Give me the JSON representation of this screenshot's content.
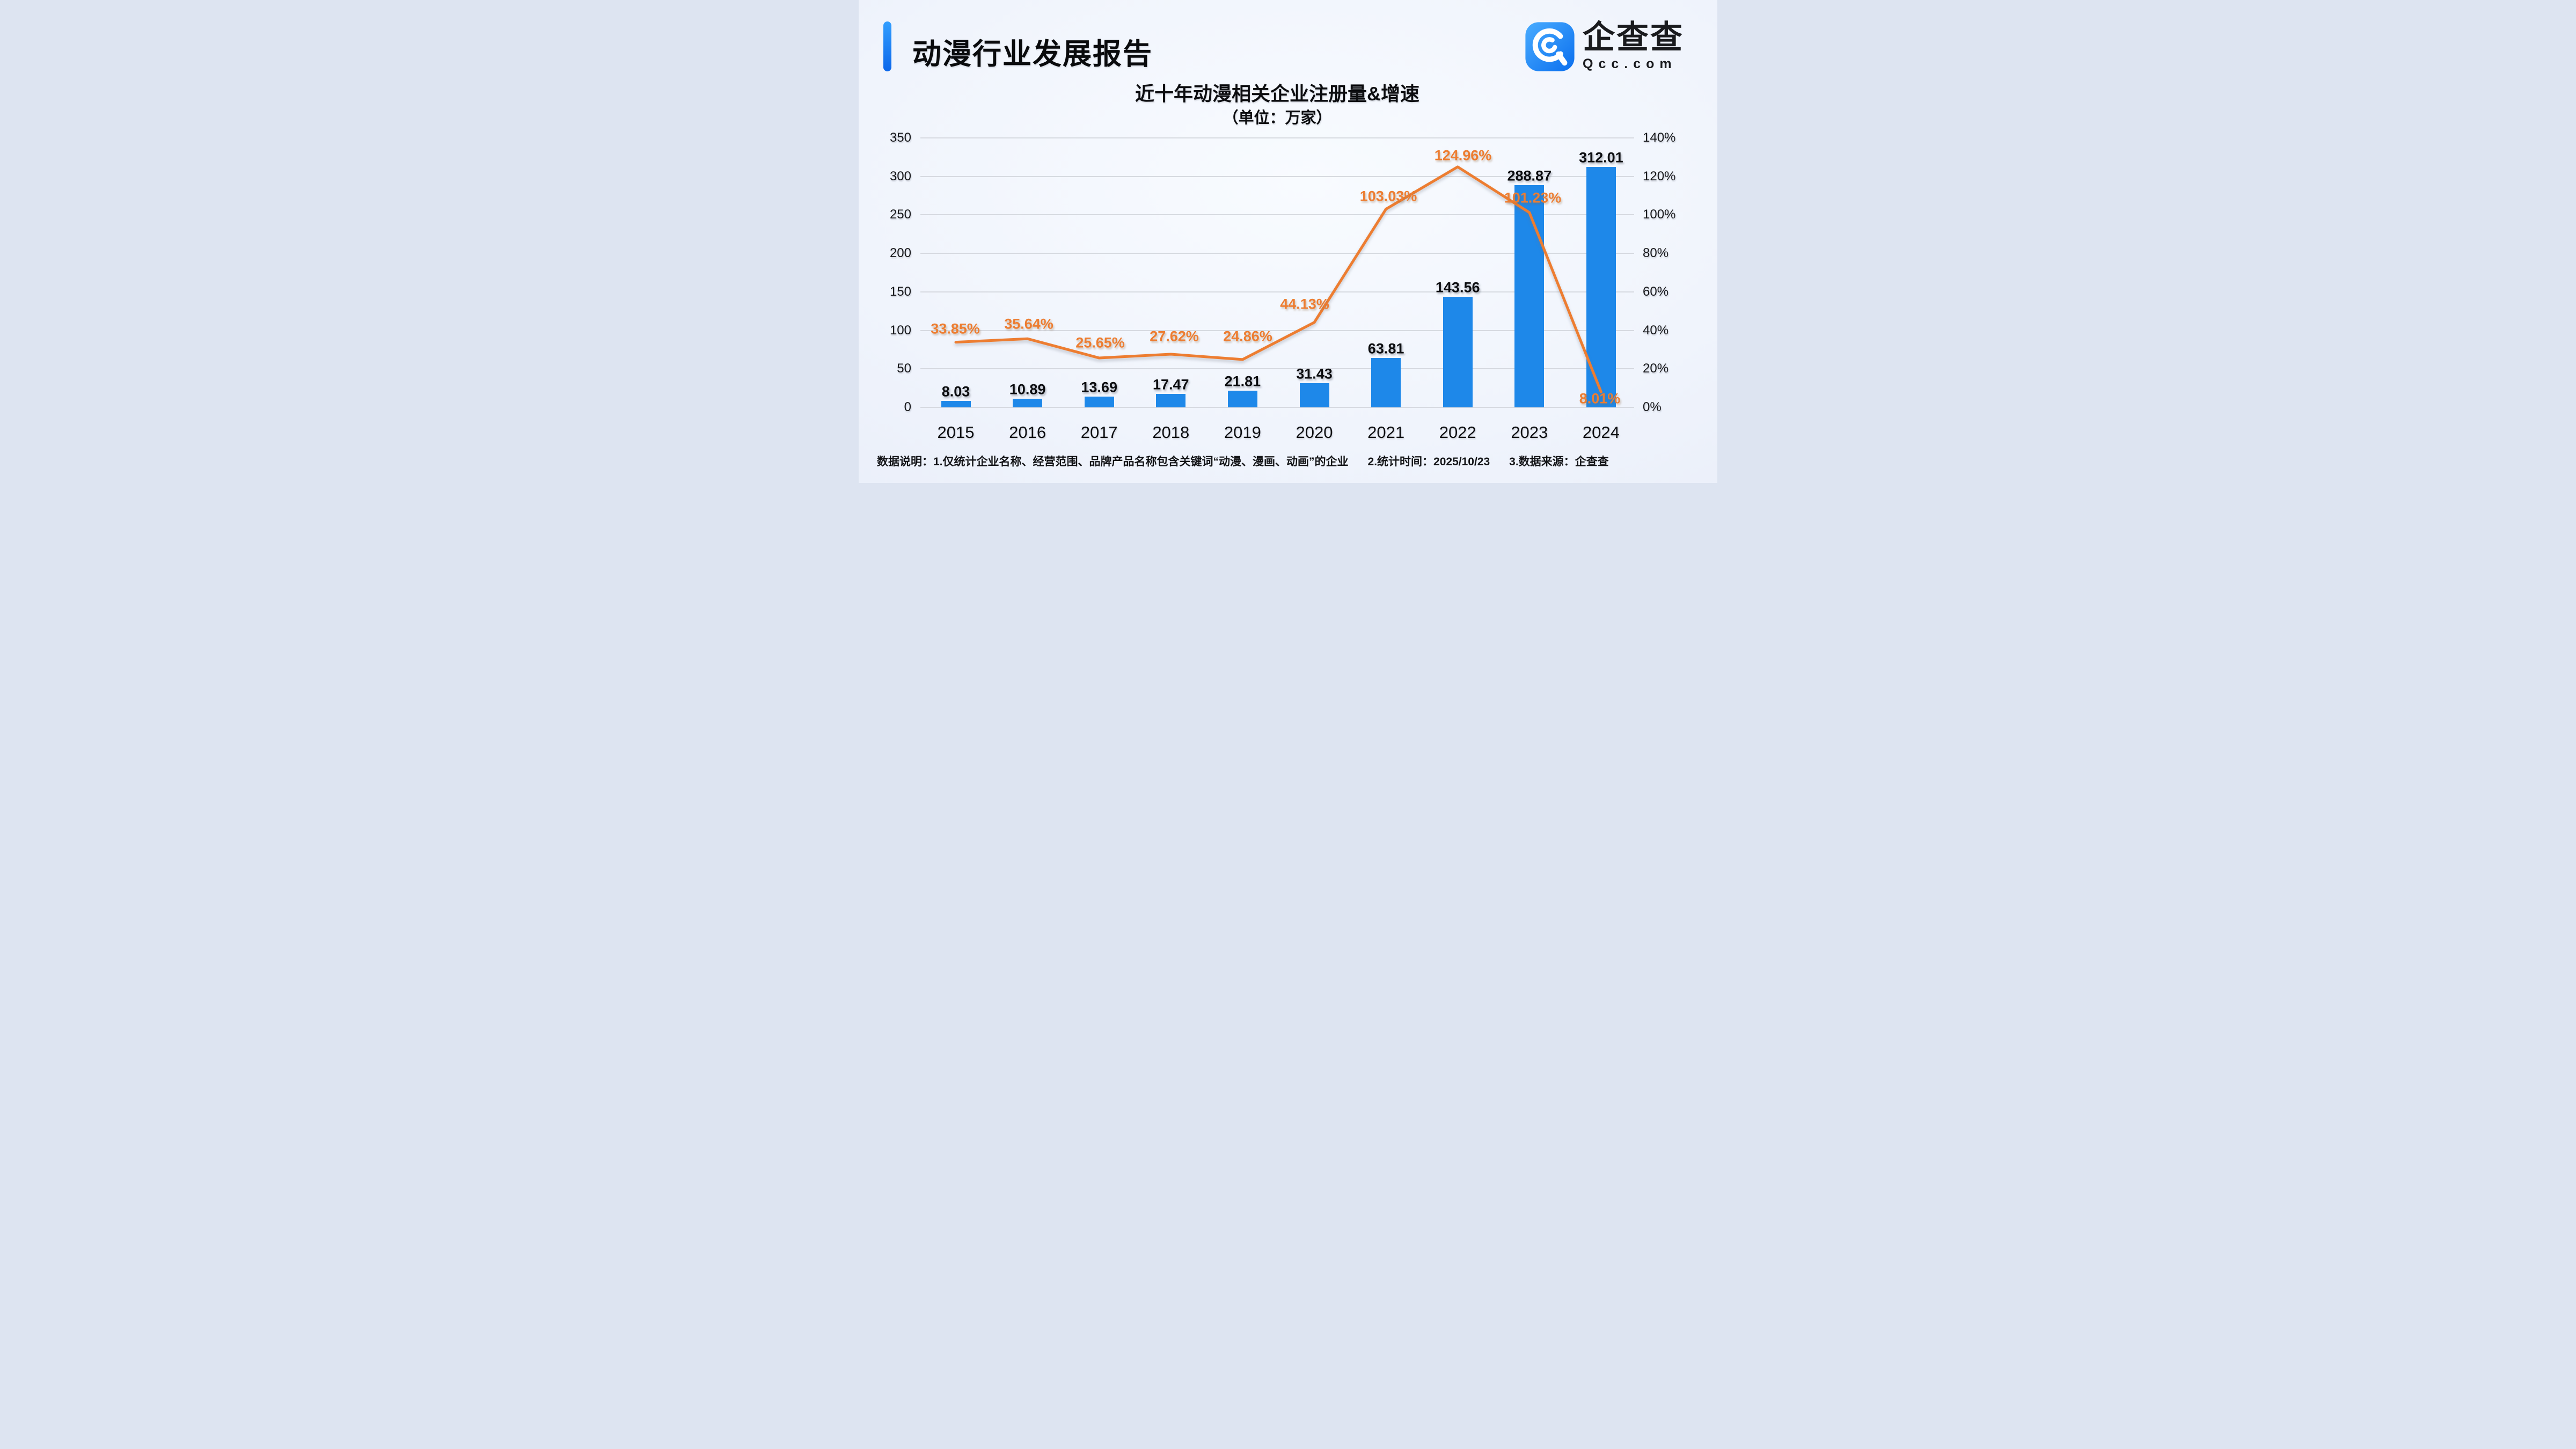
{
  "header": {
    "title": "动漫行业发展报告",
    "logo": {
      "name": "企查查",
      "domain": "Qcc.com"
    }
  },
  "chart_data": {
    "type": "bar+line",
    "title": "近十年动漫相关企业注册量&增速",
    "subtitle": "（单位：万家）",
    "categories": [
      "2015",
      "2016",
      "2017",
      "2018",
      "2019",
      "2020",
      "2021",
      "2022",
      "2023",
      "2024"
    ],
    "series": [
      {
        "name": "注册量",
        "type": "bar",
        "unit": "万家",
        "axis": "left",
        "color": "#1e88e9",
        "values": [
          8.03,
          10.89,
          13.69,
          17.47,
          21.81,
          31.43,
          63.81,
          143.56,
          288.87,
          312.01
        ]
      },
      {
        "name": "增速",
        "type": "line",
        "unit": "%",
        "axis": "right",
        "color": "#ed7d31",
        "values": [
          33.85,
          35.64,
          25.65,
          27.62,
          24.86,
          44.13,
          103.03,
          124.96,
          101.23,
          8.01
        ]
      }
    ],
    "left_axis": {
      "min": 0,
      "max": 350,
      "tick_step": 50,
      "ticks": [
        "350",
        "300",
        "250",
        "200",
        "150",
        "100",
        "50",
        "0"
      ]
    },
    "right_axis": {
      "min": 0,
      "max": 140,
      "tick_step": 20,
      "ticks": [
        "140%",
        "120%",
        "100%",
        "80%",
        "60%",
        "40%",
        "20%",
        "0%"
      ]
    },
    "grid": true,
    "legend": "none"
  },
  "footnote": {
    "parts": [
      "数据说明：1.仅统计企业名称、经营范围、品牌产品名称包含关键词“动漫、漫画、动画”的企业",
      "2.统计时间：2025/10/23",
      "3.数据来源：企查查"
    ]
  },
  "colors": {
    "bar": "#1e88e9",
    "line": "#ed7d31",
    "accent_top": "#329eff",
    "accent_bottom": "#0c67ea",
    "grid": "#d3d6dd",
    "background": "#edf2fb"
  }
}
